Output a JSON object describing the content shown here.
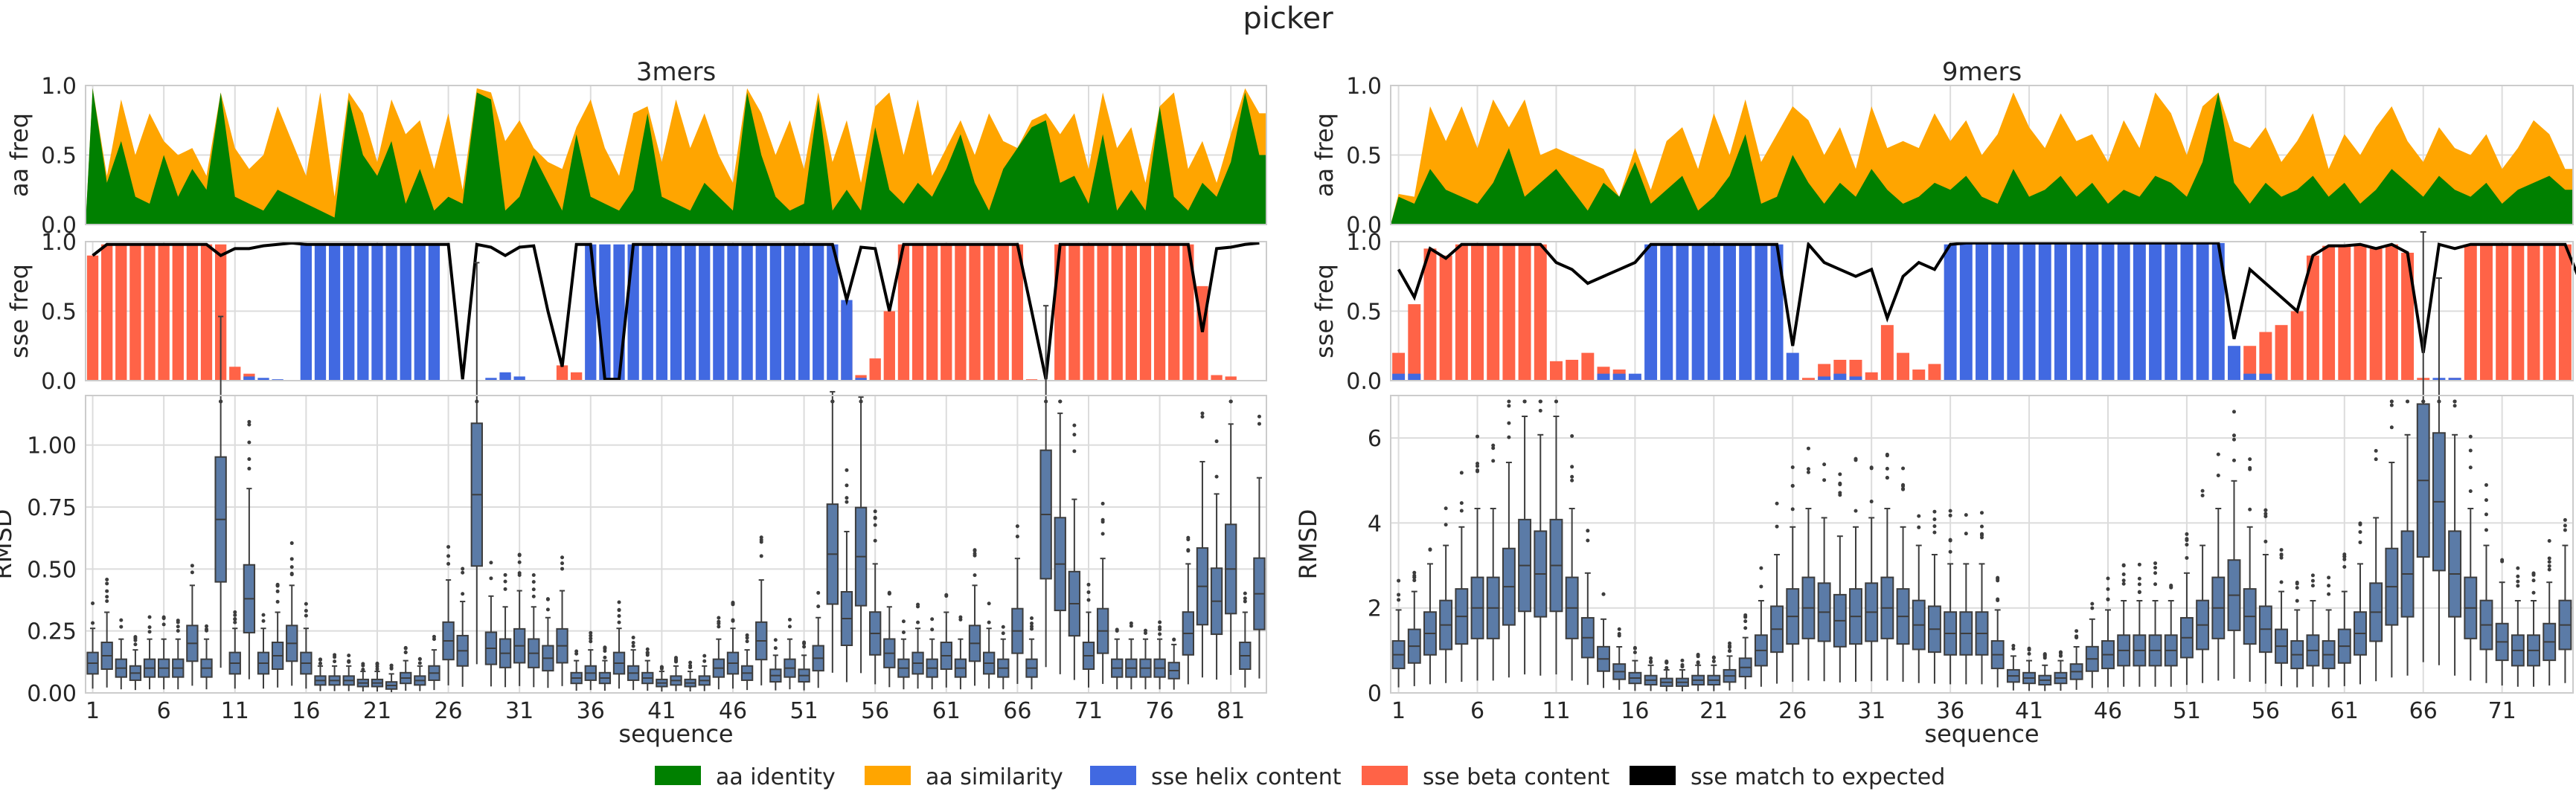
{
  "figure": {
    "title": "picker"
  },
  "legend": [
    {
      "label": "aa identity",
      "color": "#008000"
    },
    {
      "label": "aa similarity",
      "color": "#FFA500"
    },
    {
      "label": "sse helix content",
      "color": "#4169E1"
    },
    {
      "label": "sse beta content",
      "color": "#FF6347"
    },
    {
      "label": "sse match to expected",
      "color": "#000000"
    }
  ],
  "colors": {
    "identity": "#008000",
    "similarity": "#FFA500",
    "helix": "#4169E1",
    "beta": "#FF6347",
    "match": "#000000",
    "box": "#5B7BA7",
    "grid": "#dcdcdc"
  },
  "chart_data": [
    {
      "panel": "3mers",
      "type": "area+bar+line+box",
      "title": "3mers",
      "n": 83,
      "xticks": [
        "1",
        "6",
        "11",
        "16",
        "21",
        "26",
        "31",
        "36",
        "41",
        "46",
        "51",
        "56",
        "61",
        "66",
        "71",
        "76",
        "81"
      ],
      "xlabel": "sequence",
      "aa": {
        "ylabel": "aa freq",
        "ylim": [
          0,
          1
        ],
        "yticks": [
          "0.0",
          "0.5",
          "1.0"
        ],
        "identity": [
          0.98,
          0.3,
          0.6,
          0.2,
          0.15,
          0.5,
          0.2,
          0.4,
          0.25,
          0.95,
          0.2,
          0.15,
          0.1,
          0.25,
          0.2,
          0.15,
          0.1,
          0.05,
          0.9,
          0.5,
          0.35,
          0.6,
          0.15,
          0.4,
          0.1,
          0.2,
          0.15,
          0.95,
          0.9,
          0.1,
          0.2,
          0.5,
          0.3,
          0.1,
          0.65,
          0.2,
          0.15,
          0.1,
          0.25,
          0.8,
          0.2,
          0.15,
          0.1,
          0.3,
          0.2,
          0.1,
          0.95,
          0.5,
          0.2,
          0.1,
          0.15,
          0.9,
          0.1,
          0.25,
          0.1,
          0.7,
          0.25,
          0.15,
          0.3,
          0.2,
          0.4,
          0.65,
          0.3,
          0.1,
          0.4,
          0.55,
          0.7,
          0.75,
          0.3,
          0.35,
          0.15,
          0.65,
          0.1,
          0.25,
          0.1,
          0.85,
          0.2,
          0.1,
          0.3,
          0.2,
          0.45,
          0.95,
          0.5
        ],
        "similarity": [
          0.98,
          0.35,
          0.9,
          0.5,
          0.8,
          0.6,
          0.5,
          0.55,
          0.35,
          0.95,
          0.55,
          0.4,
          0.5,
          0.85,
          0.6,
          0.35,
          0.95,
          0.2,
          0.95,
          0.8,
          0.45,
          0.9,
          0.65,
          0.75,
          0.4,
          0.8,
          0.25,
          0.98,
          0.95,
          0.6,
          0.75,
          0.55,
          0.45,
          0.4,
          0.7,
          0.9,
          0.55,
          0.35,
          0.8,
          0.85,
          0.45,
          0.9,
          0.55,
          0.8,
          0.5,
          0.3,
          0.98,
          0.8,
          0.5,
          0.75,
          0.4,
          0.95,
          0.45,
          0.75,
          0.3,
          0.85,
          0.95,
          0.5,
          0.9,
          0.35,
          0.55,
          0.75,
          0.5,
          0.8,
          0.6,
          0.55,
          0.75,
          0.8,
          0.65,
          0.8,
          0.4,
          0.95,
          0.55,
          0.7,
          0.3,
          0.85,
          0.95,
          0.4,
          0.6,
          0.3,
          0.65,
          0.98,
          0.8
        ]
      },
      "sse": {
        "ylabel": "sse freq",
        "ylim": [
          0,
          1
        ],
        "yticks": [
          "0.0",
          "0.5",
          "1.0"
        ],
        "helix": [
          0,
          0,
          0,
          0,
          0,
          0,
          0,
          0,
          0,
          0,
          0,
          0.03,
          0.02,
          0.01,
          0,
          0.98,
          0.98,
          0.98,
          0.98,
          0.98,
          0.98,
          0.98,
          0.98,
          0.98,
          0.98,
          0,
          0,
          0,
          0.02,
          0.06,
          0.03,
          0,
          0,
          0,
          0,
          0.98,
          0.98,
          0.98,
          0.98,
          0.98,
          0.98,
          0.98,
          0.98,
          0.98,
          0.98,
          0.98,
          0.98,
          0.98,
          0.98,
          0.98,
          0.98,
          0.98,
          0.98,
          0.58,
          0.02,
          0,
          0,
          0,
          0,
          0,
          0,
          0,
          0,
          0,
          0,
          0,
          0,
          0,
          0,
          0,
          0,
          0,
          0,
          0,
          0,
          0,
          0,
          0,
          0,
          0,
          0,
          0,
          0
        ],
        "beta": [
          0.9,
          0.98,
          0.98,
          0.98,
          0.98,
          0.98,
          0.98,
          0.98,
          0.98,
          0.98,
          0.1,
          0.05,
          0,
          0,
          0,
          0,
          0,
          0,
          0,
          0,
          0,
          0,
          0,
          0,
          0,
          0,
          0,
          0,
          0,
          0.04,
          0,
          0,
          0,
          0.11,
          0.06,
          0,
          0,
          0,
          0,
          0,
          0,
          0,
          0,
          0,
          0,
          0,
          0,
          0,
          0,
          0,
          0,
          0,
          0,
          0.55,
          0.04,
          0.16,
          0.5,
          0.98,
          0.98,
          0.98,
          0.98,
          0.98,
          0.98,
          0.98,
          0.98,
          0.98,
          0.01,
          0,
          0.98,
          0.98,
          0.98,
          0.98,
          0.98,
          0.98,
          0.98,
          0.98,
          0.98,
          0.98,
          0.68,
          0.04,
          0.03,
          0,
          0
        ],
        "match": [
          0.9,
          0.98,
          0.98,
          0.98,
          0.98,
          0.98,
          0.98,
          0.98,
          0.98,
          0.9,
          0.95,
          0.95,
          0.97,
          0.98,
          0.99,
          0.98,
          0.98,
          0.98,
          0.98,
          0.98,
          0.98,
          0.98,
          0.98,
          0.98,
          0.98,
          0.98,
          0.01,
          0.98,
          0.96,
          0.9,
          0.96,
          0.97,
          0.5,
          0.1,
          0.98,
          0.98,
          0.01,
          0.01,
          0.98,
          0.98,
          0.98,
          0.98,
          0.98,
          0.98,
          0.98,
          0.98,
          0.98,
          0.98,
          0.98,
          0.98,
          0.98,
          0.98,
          0.98,
          0.58,
          0.96,
          0.95,
          0.5,
          0.98,
          0.98,
          0.98,
          0.98,
          0.98,
          0.98,
          0.98,
          0.98,
          0.98,
          0.5,
          0.01,
          0.98,
          0.98,
          0.98,
          0.98,
          0.98,
          0.98,
          0.98,
          0.98,
          0.98,
          0.98,
          0.35,
          0.95,
          0.96,
          0.98,
          0.99
        ]
      },
      "rmsd": {
        "ylabel": "RMSD",
        "ylim": [
          0,
          1.2
        ],
        "yticks": [
          "0.00",
          "0.25",
          "0.50",
          "0.75",
          "1.00"
        ],
        "ytickvals": [
          0,
          0.25,
          0.5,
          0.75,
          1.0
        ],
        "median": [
          0.12,
          0.15,
          0.1,
          0.08,
          0.1,
          0.1,
          0.1,
          0.2,
          0.1,
          0.7,
          0.12,
          0.38,
          0.12,
          0.15,
          0.2,
          0.12,
          0.05,
          0.05,
          0.05,
          0.04,
          0.04,
          0.03,
          0.06,
          0.05,
          0.08,
          0.21,
          0.17,
          0.8,
          0.18,
          0.16,
          0.19,
          0.16,
          0.14,
          0.19,
          0.06,
          0.08,
          0.06,
          0.12,
          0.08,
          0.06,
          0.04,
          0.05,
          0.04,
          0.05,
          0.1,
          0.12,
          0.08,
          0.21,
          0.07,
          0.1,
          0.07,
          0.14,
          0.56,
          0.3,
          0.55,
          0.24,
          0.16,
          0.1,
          0.12,
          0.1,
          0.15,
          0.1,
          0.2,
          0.12,
          0.1,
          0.25,
          0.1,
          0.72,
          0.52,
          0.36,
          0.15,
          0.25,
          0.1,
          0.1,
          0.1,
          0.1,
          0.09,
          0.24,
          0.43,
          0.37,
          0.5,
          0.15,
          0.4
        ]
      },
      "rmsd_max": 1.2
    },
    {
      "panel": "9mers",
      "type": "area+bar+line+box",
      "title": "9mers",
      "n": 75,
      "xticks": [
        "1",
        "6",
        "11",
        "16",
        "21",
        "26",
        "31",
        "36",
        "41",
        "46",
        "51",
        "56",
        "61",
        "66",
        "71"
      ],
      "xlabel": "sequence",
      "aa": {
        "ylabel": "aa freq",
        "ylim": [
          0,
          1
        ],
        "yticks": [
          "0.0",
          "0.5",
          "1.0"
        ],
        "identity": [
          0.2,
          0.15,
          0.4,
          0.25,
          0.2,
          0.15,
          0.3,
          0.55,
          0.2,
          0.3,
          0.4,
          0.25,
          0.1,
          0.3,
          0.2,
          0.45,
          0.15,
          0.25,
          0.35,
          0.1,
          0.2,
          0.35,
          0.65,
          0.15,
          0.2,
          0.5,
          0.3,
          0.15,
          0.3,
          0.2,
          0.4,
          0.25,
          0.15,
          0.2,
          0.3,
          0.25,
          0.35,
          0.2,
          0.15,
          0.4,
          0.2,
          0.25,
          0.35,
          0.2,
          0.3,
          0.15,
          0.25,
          0.2,
          0.35,
          0.3,
          0.2,
          0.45,
          0.95,
          0.3,
          0.15,
          0.3,
          0.2,
          0.25,
          0.35,
          0.2,
          0.3,
          0.15,
          0.25,
          0.4,
          0.3,
          0.2,
          0.35,
          0.25,
          0.2,
          0.3,
          0.15,
          0.25,
          0.3,
          0.35,
          0.25
        ],
        "similarity": [
          0.22,
          0.2,
          0.85,
          0.6,
          0.85,
          0.55,
          0.9,
          0.7,
          0.9,
          0.5,
          0.55,
          0.5,
          0.45,
          0.4,
          0.2,
          0.55,
          0.25,
          0.6,
          0.7,
          0.4,
          0.8,
          0.5,
          0.9,
          0.45,
          0.65,
          0.85,
          0.75,
          0.5,
          0.7,
          0.4,
          0.85,
          0.55,
          0.6,
          0.55,
          0.8,
          0.6,
          0.75,
          0.5,
          0.65,
          0.95,
          0.7,
          0.55,
          0.8,
          0.6,
          0.65,
          0.45,
          0.75,
          0.55,
          0.95,
          0.8,
          0.5,
          0.85,
          0.95,
          0.6,
          0.55,
          0.7,
          0.45,
          0.6,
          0.8,
          0.4,
          0.65,
          0.5,
          0.7,
          0.85,
          0.6,
          0.45,
          0.7,
          0.55,
          0.5,
          0.65,
          0.4,
          0.55,
          0.75,
          0.65,
          0.4
        ]
      },
      "sse": {
        "ylabel": "sse freq",
        "ylim": [
          0,
          1
        ],
        "yticks": [
          "0.0",
          "0.5",
          "1.0"
        ],
        "helix": [
          0.05,
          0.05,
          0,
          0,
          0,
          0,
          0,
          0,
          0,
          0,
          0,
          0,
          0,
          0.05,
          0.05,
          0.05,
          0.98,
          0.98,
          0.98,
          0.98,
          0.98,
          0.98,
          0.98,
          0.98,
          0.98,
          0.2,
          0,
          0.03,
          0.05,
          0.03,
          0,
          0,
          0,
          0,
          0,
          0.98,
          0.99,
          0.99,
          0.99,
          0.99,
          0.99,
          0.99,
          0.99,
          0.99,
          0.99,
          0.99,
          0.99,
          0.99,
          0.99,
          0.99,
          0.99,
          0.99,
          0.99,
          0.25,
          0.05,
          0.05,
          0,
          0,
          0,
          0,
          0,
          0,
          0,
          0,
          0,
          0,
          0.02,
          0.02,
          0,
          0,
          0,
          0,
          0,
          0,
          0
        ],
        "beta": [
          0.2,
          0.55,
          0.95,
          0.9,
          0.98,
          0.98,
          0.98,
          0.98,
          0.98,
          0.98,
          0.14,
          0.15,
          0.2,
          0.1,
          0.08,
          0.02,
          0,
          0,
          0,
          0,
          0,
          0,
          0,
          0,
          0,
          0,
          0.02,
          0.12,
          0.15,
          0.15,
          0.06,
          0.4,
          0.2,
          0.08,
          0.12,
          0,
          0,
          0,
          0,
          0,
          0,
          0,
          0,
          0,
          0,
          0,
          0,
          0,
          0,
          0,
          0,
          0,
          0,
          0.07,
          0.25,
          0.35,
          0.4,
          0.5,
          0.9,
          0.97,
          0.97,
          0.98,
          0.95,
          0.98,
          0.92,
          0.02,
          0,
          0.02,
          0.98,
          0.98,
          0.98,
          0.98,
          0.98,
          0.98,
          0.98,
          0.02,
          0.45
        ],
        "match": [
          0.8,
          0.6,
          0.95,
          0.88,
          0.98,
          0.98,
          0.98,
          0.98,
          0.98,
          0.98,
          0.85,
          0.8,
          0.7,
          0.75,
          0.8,
          0.85,
          0.98,
          0.98,
          0.98,
          0.98,
          0.98,
          0.98,
          0.98,
          0.98,
          0.98,
          0.25,
          0.98,
          0.85,
          0.8,
          0.75,
          0.8,
          0.45,
          0.75,
          0.85,
          0.8,
          0.98,
          0.99,
          0.99,
          0.99,
          0.99,
          0.99,
          0.99,
          0.99,
          0.99,
          0.99,
          0.99,
          0.99,
          0.99,
          0.99,
          0.99,
          0.99,
          0.99,
          0.99,
          0.3,
          0.8,
          0.7,
          0.6,
          0.5,
          0.9,
          0.97,
          0.97,
          0.98,
          0.95,
          0.98,
          0.92,
          0.2,
          0.98,
          0.95,
          0.98,
          0.98,
          0.98,
          0.98,
          0.98,
          0.98,
          0.98,
          0.7,
          0.5
        ]
      },
      "rmsd": {
        "ylabel": "RMSD",
        "ylim": [
          0,
          7
        ],
        "yticks": [
          "0",
          "2",
          "4",
          "6"
        ],
        "ytickvals": [
          0,
          2,
          4,
          6
        ],
        "median": [
          0.9,
          1.1,
          1.4,
          1.6,
          1.8,
          2.0,
          2.0,
          2.5,
          3.0,
          2.8,
          3.0,
          2.0,
          1.3,
          0.8,
          0.5,
          0.35,
          0.3,
          0.25,
          0.25,
          0.3,
          0.3,
          0.4,
          0.6,
          1.0,
          1.5,
          1.8,
          2.0,
          1.9,
          1.7,
          1.8,
          1.9,
          2.0,
          1.8,
          1.6,
          1.5,
          1.4,
          1.4,
          1.4,
          0.9,
          0.4,
          0.35,
          0.3,
          0.35,
          0.5,
          0.8,
          0.9,
          1.0,
          1.0,
          1.0,
          1.0,
          1.3,
          1.6,
          2.0,
          2.3,
          1.8,
          1.5,
          1.1,
          0.9,
          1.0,
          0.9,
          1.1,
          1.4,
          1.9,
          2.5,
          2.8,
          5.0,
          4.5,
          2.8,
          2.0,
          1.6,
          1.2,
          1.0,
          1.0,
          1.2,
          1.6
        ],
        "tail": [
          3.8,
          3.7
        ]
      },
      "rmsd_max": 7
    }
  ]
}
